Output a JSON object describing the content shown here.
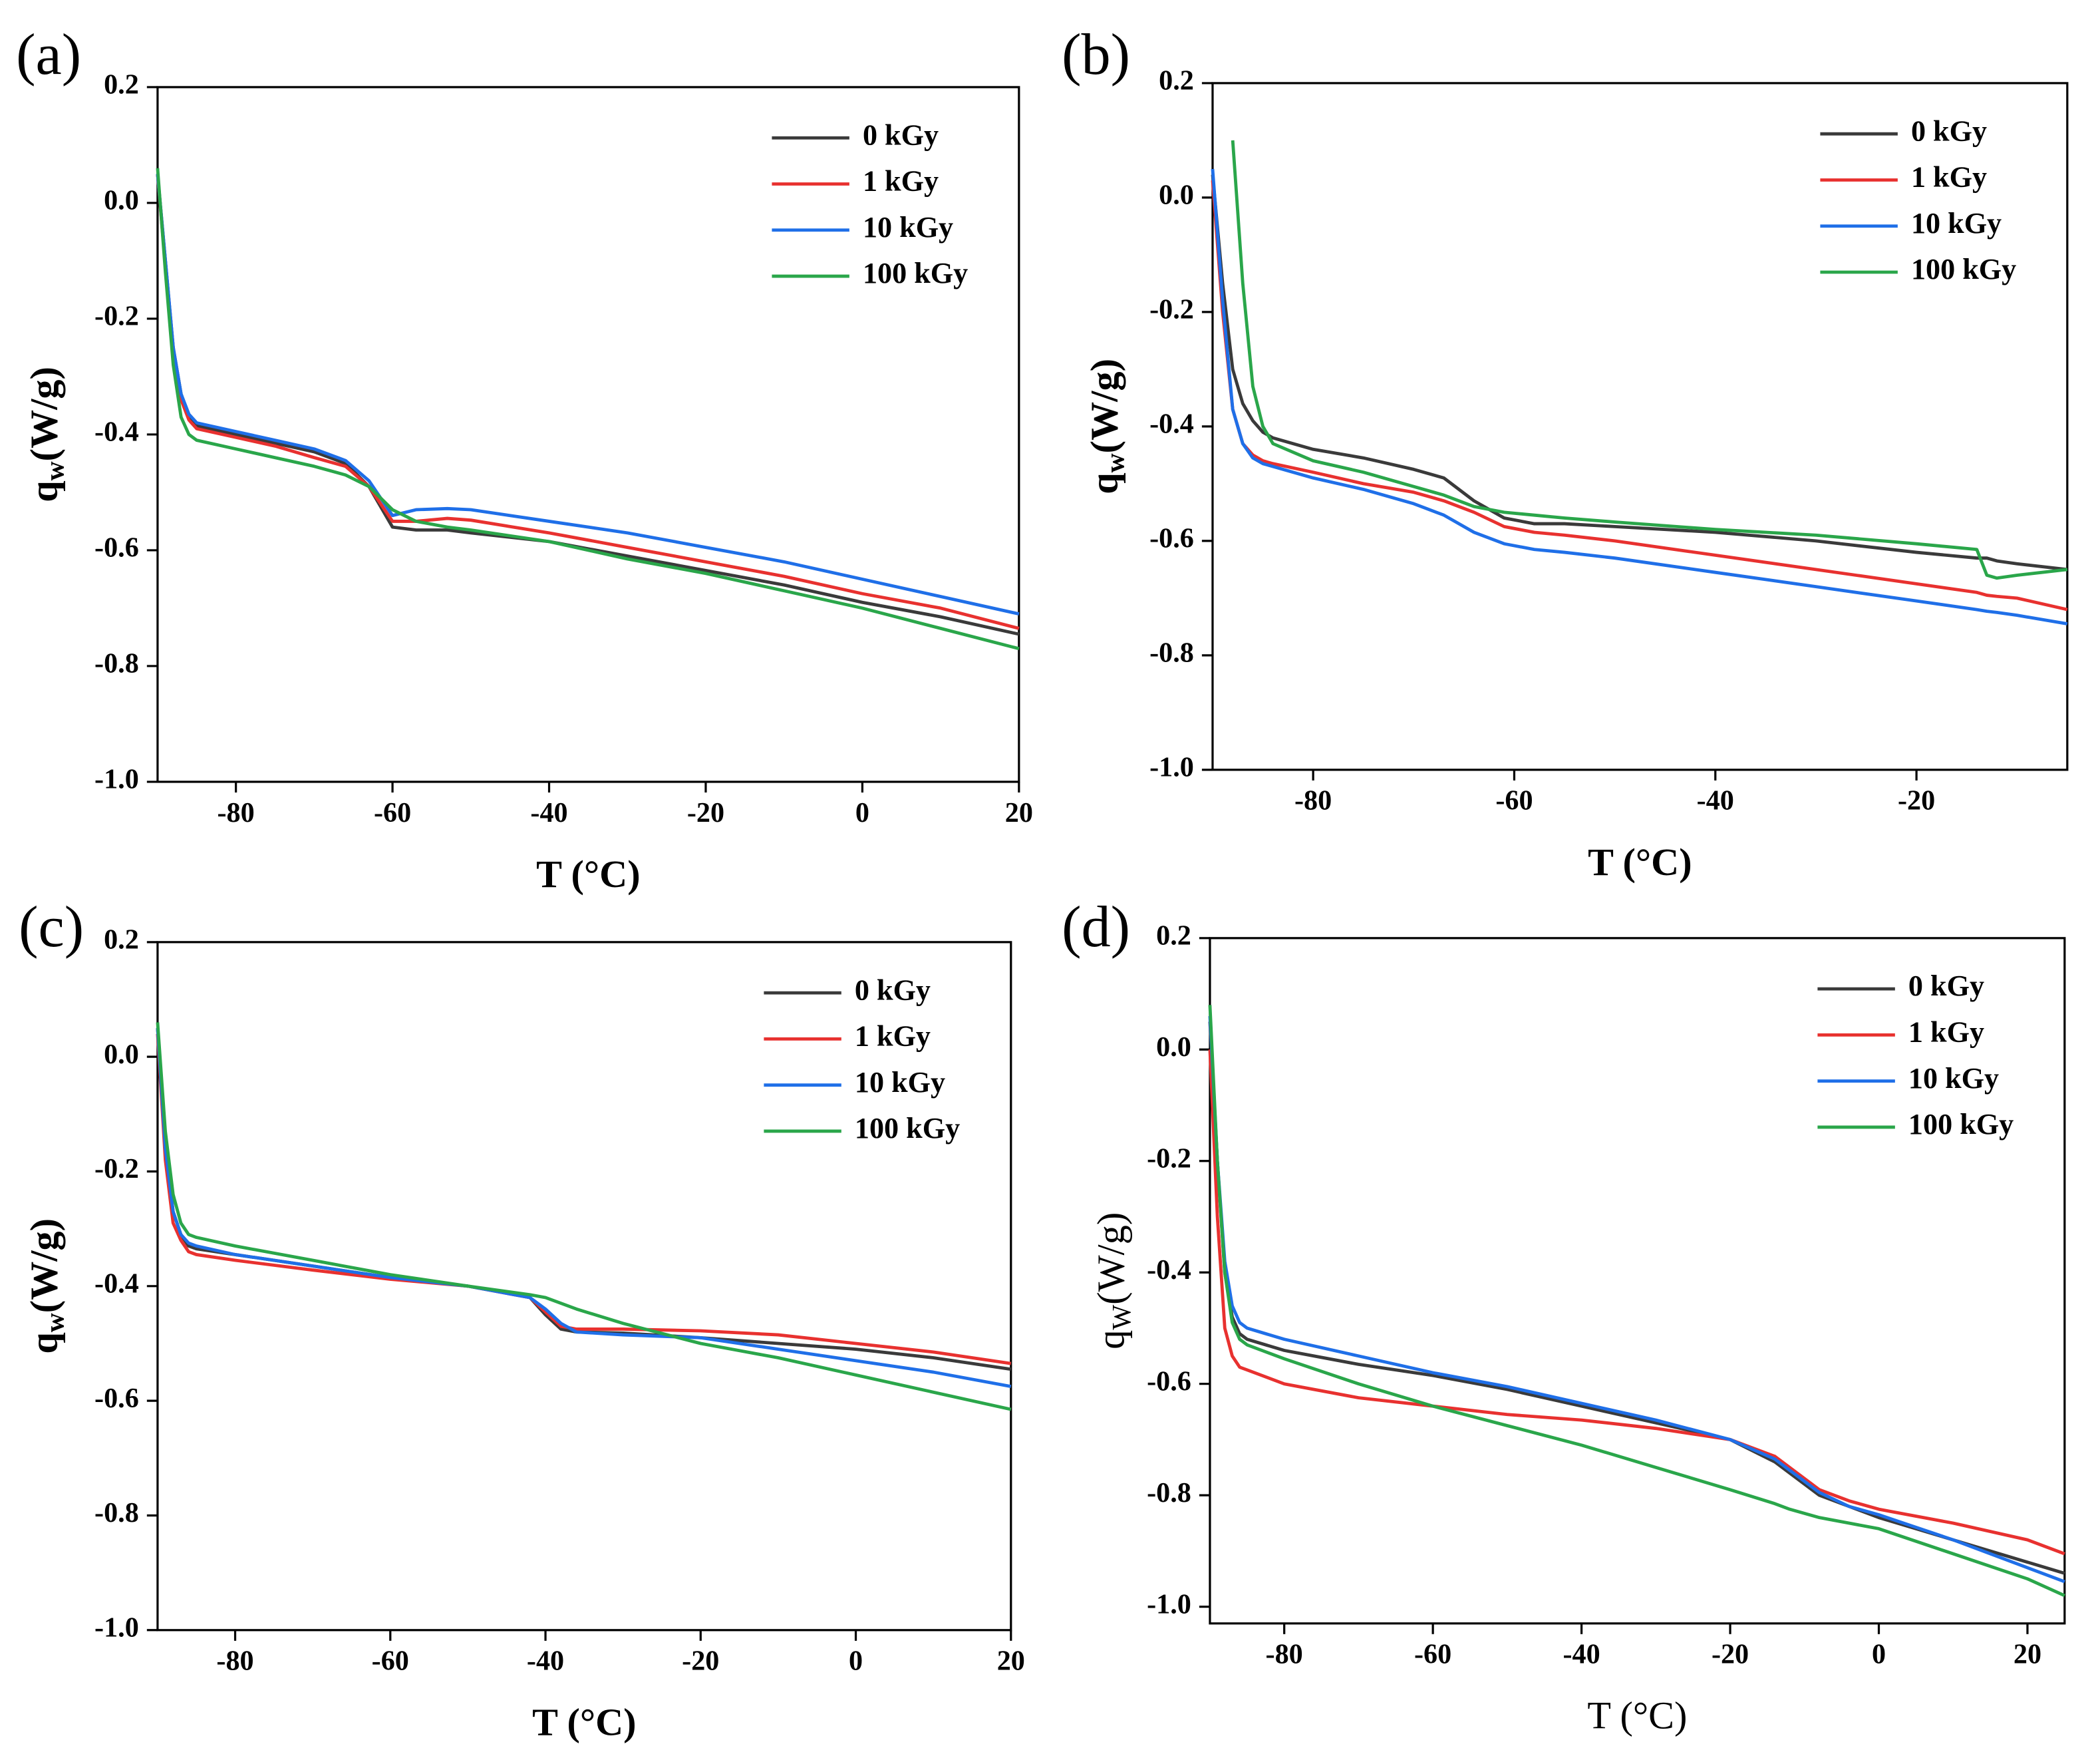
{
  "chart_data": [
    {
      "type": "line",
      "panel_label": "(a)",
      "x_label": "T (°C)",
      "y_label": "q",
      "y_label_sub": "w",
      "y_label_unit": "(W/g)",
      "legend": "upper right",
      "xlim": [
        -90,
        20
      ],
      "ylim": [
        -1.0,
        0.2
      ],
      "xticks": [
        -80,
        -60,
        -40,
        -20,
        0,
        20
      ],
      "yticks": [
        0.2,
        {
          "value": 0,
          "label": "0.0"
        },
        -0.2,
        -0.4,
        -0.6,
        -0.8,
        {
          "value": -1,
          "label": "-1.0"
        }
      ],
      "x": [
        -90,
        -89,
        -88,
        -87,
        -86,
        -85,
        -80,
        -75,
        -70,
        -66,
        -63,
        -60,
        -57,
        -53,
        -50,
        -40,
        -30,
        -20,
        -10,
        0,
        10,
        20
      ],
      "series": [
        {
          "name": "0 kGy",
          "color": "#3a3a3a",
          "values": [
            0.05,
            -0.1,
            -0.25,
            -0.33,
            -0.37,
            -0.385,
            -0.4,
            -0.415,
            -0.43,
            -0.45,
            -0.49,
            -0.56,
            -0.565,
            -0.565,
            -0.57,
            -0.585,
            -0.61,
            -0.635,
            -0.66,
            -0.69,
            -0.715,
            -0.745
          ]
        },
        {
          "name": "1 kGy",
          "color": "#e8312f",
          "values": [
            0.05,
            -0.11,
            -0.26,
            -0.34,
            -0.375,
            -0.39,
            -0.405,
            -0.42,
            -0.44,
            -0.455,
            -0.49,
            -0.55,
            -0.55,
            -0.545,
            -0.548,
            -0.57,
            -0.595,
            -0.62,
            -0.645,
            -0.675,
            -0.7,
            -0.735
          ]
        },
        {
          "name": "10 kGy",
          "color": "#1f6fe8",
          "values": [
            0.05,
            -0.1,
            -0.25,
            -0.33,
            -0.365,
            -0.38,
            -0.395,
            -0.41,
            -0.425,
            -0.445,
            -0.48,
            -0.54,
            -0.53,
            -0.528,
            -0.53,
            -0.55,
            -0.57,
            -0.595,
            -0.62,
            -0.65,
            -0.68,
            -0.71
          ]
        },
        {
          "name": "100 kGy",
          "color": "#2aa64a",
          "values": [
            0.06,
            -0.12,
            -0.28,
            -0.37,
            -0.4,
            -0.41,
            -0.425,
            -0.44,
            -0.455,
            -0.47,
            -0.49,
            -0.53,
            -0.55,
            -0.56,
            -0.565,
            -0.585,
            -0.615,
            -0.64,
            -0.67,
            -0.7,
            -0.735,
            -0.77
          ]
        }
      ]
    },
    {
      "type": "line",
      "panel_label": "(b)",
      "x_label": "T (°C)",
      "y_label": "q",
      "y_label_sub": "w",
      "y_label_unit": "(W/g)",
      "legend": "upper right",
      "xlim": [
        -90,
        -5
      ],
      "ylim": [
        -1.0,
        0.2
      ],
      "xticks": [
        -80,
        -60,
        -40,
        -20
      ],
      "yticks": [
        0.2,
        {
          "value": 0,
          "label": "0.0"
        },
        -0.2,
        -0.4,
        -0.6,
        -0.8,
        {
          "value": -1,
          "label": "-1.0"
        }
      ],
      "x": [
        -90,
        -89,
        -88,
        -87,
        -86,
        -85,
        -84,
        -80,
        -75,
        -70,
        -67,
        -64,
        -61,
        -58,
        -55,
        -50,
        -40,
        -30,
        -20,
        -14,
        -13,
        -12,
        -10,
        -5
      ],
      "series": [
        {
          "name": "0 kGy",
          "color": "#3a3a3a",
          "values": [
            0.04,
            -0.15,
            -0.3,
            -0.36,
            -0.39,
            -0.41,
            -0.42,
            -0.44,
            -0.455,
            -0.475,
            -0.49,
            -0.53,
            -0.56,
            -0.57,
            -0.57,
            -0.575,
            -0.585,
            -0.6,
            -0.62,
            -0.63,
            -0.63,
            -0.635,
            -0.64,
            -0.65
          ]
        },
        {
          "name": "1 kGy",
          "color": "#e8312f",
          "values": [
            0.03,
            -0.2,
            -0.37,
            -0.43,
            -0.45,
            -0.46,
            -0.465,
            -0.48,
            -0.5,
            -0.515,
            -0.53,
            -0.55,
            -0.575,
            -0.585,
            -0.59,
            -0.6,
            -0.625,
            -0.65,
            -0.675,
            -0.69,
            -0.695,
            -0.697,
            -0.7,
            -0.72
          ]
        },
        {
          "name": "10 kGy",
          "color": "#1f6fe8",
          "values": [
            0.05,
            -0.18,
            -0.37,
            -0.43,
            -0.455,
            -0.465,
            -0.47,
            -0.49,
            -0.51,
            -0.535,
            -0.555,
            -0.585,
            -0.605,
            -0.615,
            -0.62,
            -0.63,
            -0.655,
            -0.68,
            -0.705,
            -0.72,
            -0.723,
            -0.725,
            -0.73,
            -0.745
          ]
        },
        {
          "name": "100 kGy",
          "color": "#2aa64a",
          "values": [
            null,
            null,
            0.1,
            -0.15,
            -0.33,
            -0.4,
            -0.43,
            -0.46,
            -0.48,
            -0.505,
            -0.52,
            -0.54,
            -0.55,
            -0.555,
            -0.56,
            -0.567,
            -0.58,
            -0.59,
            -0.605,
            -0.615,
            -0.66,
            -0.665,
            -0.66,
            -0.65
          ]
        }
      ]
    },
    {
      "type": "line",
      "panel_label": "(c)",
      "x_label": "T (°C)",
      "y_label": "q",
      "y_label_sub": "w",
      "y_label_unit": "(W/g)",
      "legend": "upper right",
      "xlim": [
        -90,
        20
      ],
      "ylim": [
        -1.0,
        0.2
      ],
      "xticks": [
        -80,
        -60,
        -40,
        -20,
        0,
        20
      ],
      "yticks": [
        0.2,
        {
          "value": 0,
          "label": "0.0"
        },
        -0.2,
        -0.4,
        -0.6,
        -0.8,
        {
          "value": -1,
          "label": "-1.0"
        }
      ],
      "x": [
        -90,
        -89,
        -88,
        -87,
        -86,
        -85,
        -80,
        -70,
        -60,
        -50,
        -42,
        -40,
        -38,
        -36,
        -30,
        -20,
        -10,
        0,
        10,
        20
      ],
      "series": [
        {
          "name": "0 kGy",
          "color": "#3a3a3a",
          "values": [
            0.05,
            -0.15,
            -0.27,
            -0.31,
            -0.33,
            -0.335,
            -0.345,
            -0.365,
            -0.385,
            -0.4,
            -0.42,
            -0.45,
            -0.475,
            -0.48,
            -0.482,
            -0.49,
            -0.5,
            -0.51,
            -0.525,
            -0.545
          ]
        },
        {
          "name": "1 kGy",
          "color": "#e8312f",
          "values": [
            0.04,
            -0.18,
            -0.29,
            -0.32,
            -0.34,
            -0.345,
            -0.355,
            -0.372,
            -0.388,
            -0.4,
            -0.42,
            -0.445,
            -0.47,
            -0.475,
            -0.475,
            -0.478,
            -0.485,
            -0.5,
            -0.515,
            -0.535
          ]
        },
        {
          "name": "10 kGy",
          "color": "#1f6fe8",
          "values": [
            0.05,
            -0.16,
            -0.27,
            -0.31,
            -0.325,
            -0.33,
            -0.345,
            -0.365,
            -0.385,
            -0.4,
            -0.42,
            -0.44,
            -0.465,
            -0.48,
            -0.485,
            -0.49,
            -0.51,
            -0.53,
            -0.55,
            -0.575
          ]
        },
        {
          "name": "100 kGy",
          "color": "#2aa64a",
          "values": [
            0.06,
            -0.13,
            -0.24,
            -0.29,
            -0.31,
            -0.315,
            -0.33,
            -0.355,
            -0.38,
            -0.4,
            -0.415,
            -0.42,
            -0.43,
            -0.44,
            -0.465,
            -0.5,
            -0.525,
            -0.555,
            -0.585,
            -0.615
          ]
        }
      ]
    },
    {
      "type": "line",
      "panel_label": "(d)",
      "x_label": "T (°C)",
      "y_label": "q",
      "y_label_sub": "W",
      "y_label_unit": "(W/g)",
      "legend": "upper right",
      "xlim": [
        -90,
        25
      ],
      "ylim": [
        -1.03,
        0.2
      ],
      "xticks": [
        -80,
        -60,
        -40,
        -20,
        0,
        20
      ],
      "yticks": [
        0.2,
        {
          "value": 0,
          "label": "0.0"
        },
        -0.2,
        -0.4,
        -0.6,
        -0.8,
        {
          "value": -1,
          "label": "-1.0"
        }
      ],
      "x": [
        -90,
        -89,
        -88,
        -87,
        -86,
        -85,
        -80,
        -70,
        -60,
        -50,
        -40,
        -30,
        -20,
        -14,
        -12,
        -8,
        -4,
        0,
        10,
        20,
        25
      ],
      "series": [
        {
          "name": "0 kGy",
          "color": "#3a3a3a",
          "values": [
            0.05,
            -0.2,
            -0.4,
            -0.48,
            -0.51,
            -0.52,
            -0.54,
            -0.565,
            -0.585,
            -0.61,
            -0.64,
            -0.67,
            -0.7,
            -0.74,
            -0.76,
            -0.8,
            -0.82,
            -0.84,
            -0.88,
            -0.92,
            -0.94
          ]
        },
        {
          "name": "1 kGy",
          "color": "#e8312f",
          "values": [
            0.0,
            -0.3,
            -0.5,
            -0.55,
            -0.57,
            -0.575,
            -0.6,
            -0.625,
            -0.64,
            -0.655,
            -0.665,
            -0.68,
            -0.7,
            -0.73,
            -0.75,
            -0.79,
            -0.81,
            -0.825,
            -0.85,
            -0.88,
            -0.905
          ]
        },
        {
          "name": "10 kGy",
          "color": "#1f6fe8",
          "values": [
            0.06,
            -0.2,
            -0.38,
            -0.46,
            -0.49,
            -0.5,
            -0.52,
            -0.55,
            -0.58,
            -0.605,
            -0.635,
            -0.665,
            -0.7,
            -0.735,
            -0.755,
            -0.795,
            -0.82,
            -0.835,
            -0.88,
            -0.93,
            -0.955
          ]
        },
        {
          "name": "100 kGy",
          "color": "#2aa64a",
          "values": [
            0.08,
            -0.2,
            -0.4,
            -0.49,
            -0.52,
            -0.53,
            -0.555,
            -0.6,
            -0.64,
            -0.675,
            -0.71,
            -0.75,
            -0.79,
            -0.815,
            -0.825,
            -0.84,
            -0.85,
            -0.86,
            -0.905,
            -0.95,
            -0.98
          ]
        }
      ]
    }
  ]
}
